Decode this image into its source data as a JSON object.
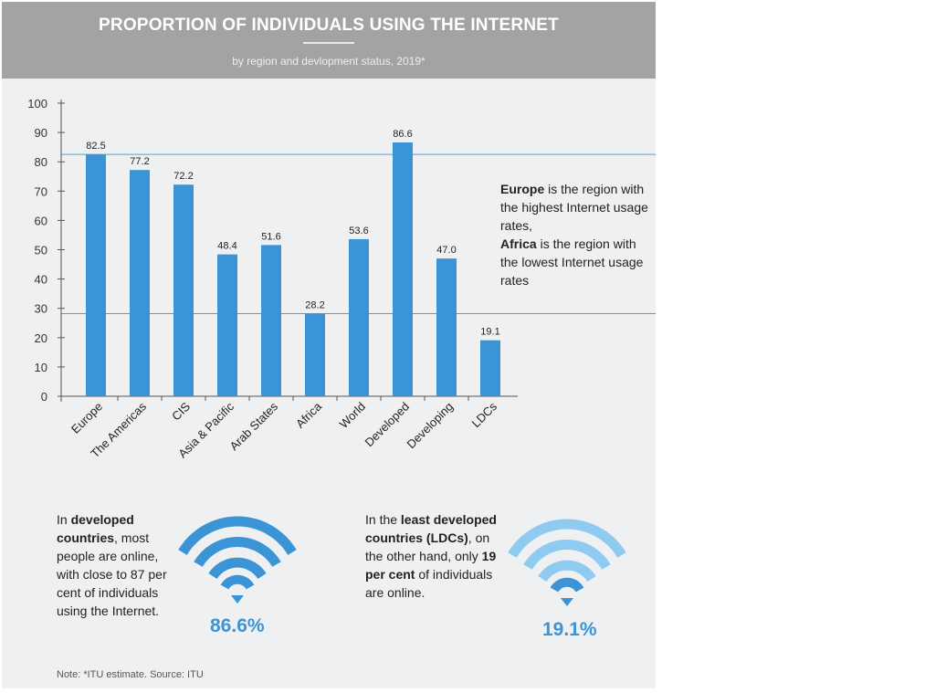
{
  "title": "PROPORTION OF INDIVIDUALS USING THE INTERNET",
  "subtitle": "by region and devlopment status, 2019*",
  "callout": {
    "b1": "Europe",
    "t1": " is the region with the highest Internet usage rates,",
    "b2": "Africa",
    "t2": " is the region with the lowest Internet usage rates"
  },
  "developed_note": {
    "t1": "In ",
    "b1": "developed countries",
    "t2": ", most people are online, with close to 87 per cent of individuals using the Internet.",
    "pct": "86.6%"
  },
  "ldc_note": {
    "t1": "In the ",
    "b1": "least developed countries (LDCs)",
    "t2": ", on the other hand, only ",
    "b2": "19 per cent",
    "t3": " of individuals are online.",
    "pct": "19.1%"
  },
  "footnote": "Note: *ITU estimate. Source: ITU",
  "icons": {
    "developed": "wifi-icon",
    "ldc": "wifi-icon"
  },
  "colors": {
    "bar": "#3b94d6",
    "header": "#a2a3a5",
    "wifi_dark": "#3b94d6",
    "wifi_light": "#8fcaf0"
  },
  "chart_data": {
    "type": "bar",
    "categories": [
      "Europe",
      "The Americas",
      "CIS",
      "Asia & Pacific",
      "Arab States",
      "Africa",
      "World",
      "Developed",
      "Developing",
      "LDCs"
    ],
    "values": [
      82.5,
      77.2,
      72.2,
      48.4,
      51.6,
      28.2,
      53.6,
      86.6,
      47.0,
      19.1
    ],
    "value_labels": [
      "82.5",
      "77.2",
      "72.2",
      "48.4",
      "51.6",
      "28.2",
      "53.6",
      "86.6",
      "47.0",
      "19.1"
    ],
    "ylim": [
      0,
      100
    ],
    "yticks": [
      0,
      10,
      20,
      30,
      40,
      50,
      60,
      70,
      80,
      90,
      100
    ],
    "reference_lines": [
      82.5,
      28.2
    ],
    "grid": false
  }
}
